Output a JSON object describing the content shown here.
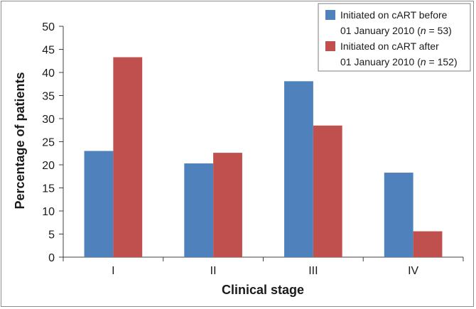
{
  "chart_data": {
    "type": "bar",
    "title": "",
    "xlabel": "Clinical stage",
    "ylabel": "Percentage of patients",
    "categories": [
      "I",
      "II",
      "III",
      "IV"
    ],
    "ylim": [
      0,
      50
    ],
    "yticks": [
      0,
      5,
      10,
      15,
      20,
      25,
      30,
      35,
      40,
      45,
      50
    ],
    "grid": false,
    "legend_position": "top-right",
    "series": [
      {
        "name_line1": "Initiated on cART before",
        "name_line2_prefix": "01 January 2010 (",
        "name_n_symbol": "n",
        "name_line2_suffix": " = 53)",
        "color": "#4F81BD",
        "values": [
          23.0,
          20.3,
          38.1,
          18.3
        ]
      },
      {
        "name_line1": "Initiated on cART after",
        "name_line2_prefix": "01 January 2010 (",
        "name_n_symbol": "n",
        "name_line2_suffix": " = 152)",
        "color": "#C0504D",
        "values": [
          43.3,
          22.6,
          28.5,
          5.6
        ]
      }
    ]
  }
}
